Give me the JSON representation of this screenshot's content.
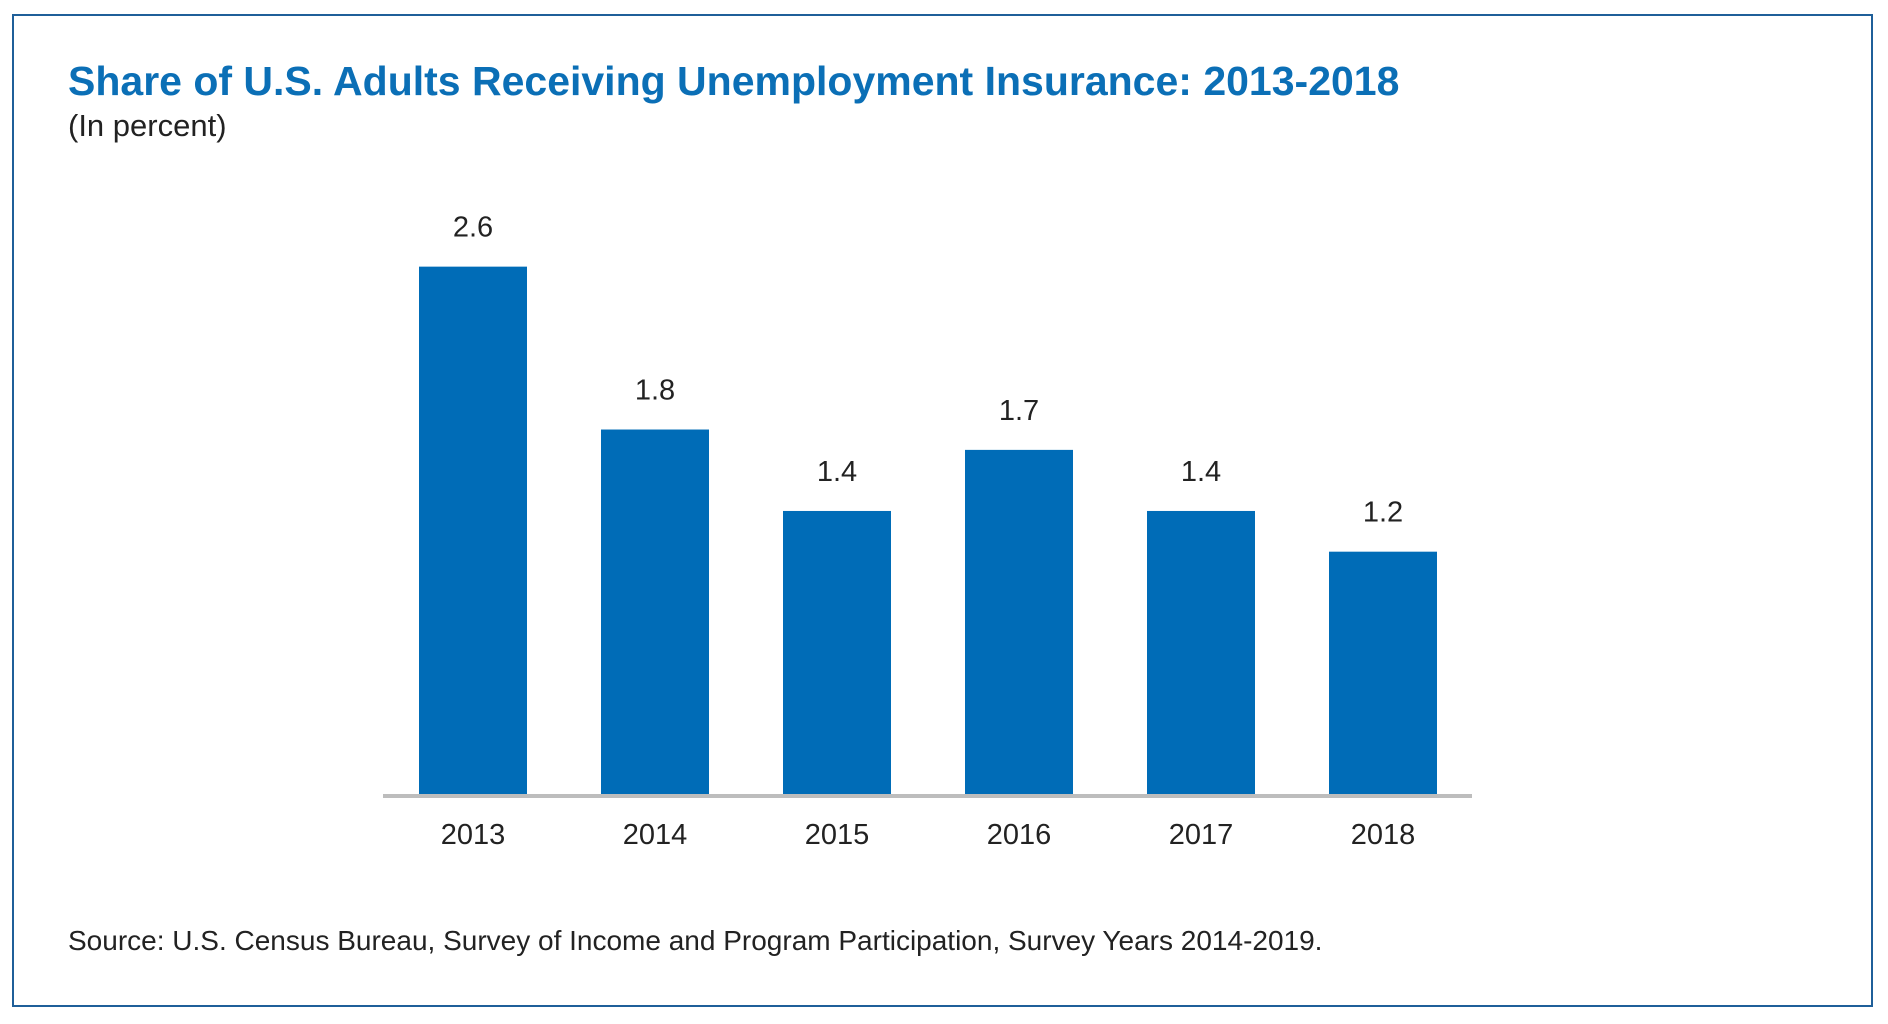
{
  "chart_data": {
    "type": "bar",
    "title": "Share of U.S. Adults Receiving Unemployment Insurance: 2013-2018",
    "subtitle": "(In percent)",
    "categories": [
      "2013",
      "2014",
      "2015",
      "2016",
      "2017",
      "2018"
    ],
    "values": [
      2.6,
      1.8,
      1.4,
      1.7,
      1.4,
      1.2
    ],
    "data_labels": [
      "2.6",
      "1.8",
      "1.4",
      "1.7",
      "1.4",
      "1.2"
    ],
    "xlabel": "",
    "ylabel": "",
    "ylim": [
      0,
      2.6
    ],
    "grid": false,
    "y_axis_shown": false,
    "bar_color": "#006cb7",
    "axis_color": "#bdbdbd",
    "title_color": "#0b6fb6",
    "source": "Source: U.S. Census Bureau, Survey of Income and Program Participation, Survey Years 2014-2019."
  }
}
